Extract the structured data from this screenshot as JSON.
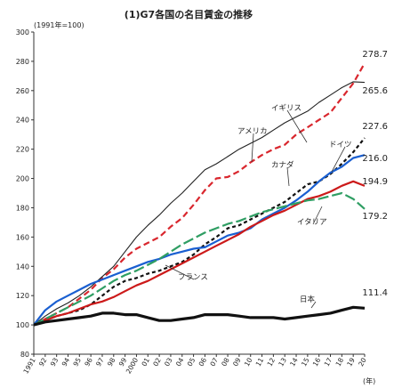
{
  "chart_data": {
    "type": "line",
    "title": "(1)G7各国の名目賃金の推移",
    "ylabel": "(1991年=100)",
    "xlabel": "(年)",
    "ylim": [
      80,
      300
    ],
    "yticks": [
      80,
      100,
      120,
      140,
      160,
      180,
      200,
      220,
      240,
      260,
      280,
      300
    ],
    "grid": false,
    "legend": "inline labels",
    "categories": [
      "1991",
      "92",
      "93",
      "94",
      "95",
      "96",
      "97",
      "98",
      "99",
      "2000",
      "01",
      "02",
      "03",
      "04",
      "05",
      "06",
      "07",
      "08",
      "09",
      "10",
      "11",
      "12",
      "13",
      "14",
      "15",
      "16",
      "17",
      "18",
      "19",
      "20"
    ],
    "series": [
      {
        "name": "アメリカ",
        "color": "#d9272e",
        "dash": "7,4",
        "width": 2.2,
        "label_end": "278.7",
        "values": [
          100,
          104,
          108,
          112,
          118,
          124,
          132,
          138,
          146,
          152,
          156,
          160,
          167,
          173,
          182,
          192,
          200,
          201,
          205,
          211,
          216,
          220,
          223,
          230,
          235,
          240,
          245,
          255,
          265,
          278.7
        ]
      },
      {
        "name": "イギリス",
        "color": "#222222",
        "dash": "",
        "width": 1.1,
        "label_end": "265.6",
        "values": [
          100,
          106,
          111,
          115,
          120,
          126,
          133,
          140,
          150,
          160,
          168,
          175,
          183,
          190,
          198,
          206,
          210,
          215,
          220,
          224,
          228,
          233,
          238,
          242,
          246,
          252,
          257,
          262,
          266,
          265.6
        ]
      },
      {
        "name": "カナダ",
        "color": "#111111",
        "dash": "4,3",
        "width": 2.2,
        "label_end": "227.6",
        "values": [
          100,
          103,
          106,
          108,
          110,
          114,
          120,
          126,
          130,
          132,
          135,
          137,
          140,
          143,
          148,
          155,
          160,
          166,
          168,
          172,
          176,
          180,
          184,
          190,
          196,
          198,
          203,
          210,
          218,
          227.6
        ]
      },
      {
        "name": "ドイツ",
        "color": "#1a5fd1",
        "dash": "",
        "width": 2.2,
        "label_end": "216.0",
        "values": [
          100,
          110,
          116,
          120,
          124,
          128,
          131,
          134,
          137,
          140,
          143,
          145,
          148,
          150,
          152,
          153,
          157,
          161,
          163,
          166,
          172,
          176,
          180,
          185,
          191,
          198,
          204,
          208,
          214,
          216.0
        ]
      },
      {
        "name": "フランス",
        "color": "#cc1a1a",
        "dash": "",
        "width": 2.2,
        "label_end": "194.9",
        "values": [
          100,
          103,
          106,
          108,
          111,
          114,
          116,
          119,
          123,
          127,
          130,
          134,
          138,
          142,
          146,
          150,
          154,
          158,
          162,
          167,
          171,
          175,
          178,
          182,
          186,
          188,
          191,
          195,
          198,
          194.9
        ]
      },
      {
        "name": "イタリア",
        "color": "#2f9e63",
        "dash": "12,4",
        "width": 2.2,
        "label_end": "179.2",
        "values": [
          100,
          104,
          108,
          112,
          116,
          120,
          125,
          130,
          134,
          137,
          141,
          145,
          150,
          155,
          159,
          163,
          166,
          169,
          171,
          174,
          177,
          179,
          181,
          183,
          185,
          186,
          188,
          190,
          186,
          179.2
        ]
      },
      {
        "name": "日本",
        "color": "#111111",
        "dash": "",
        "width": 3.2,
        "label_end": "111.4",
        "values": [
          100,
          102,
          103,
          104,
          105,
          106,
          108,
          108,
          107,
          107,
          105,
          103,
          103,
          104,
          105,
          107,
          107,
          107,
          106,
          105,
          105,
          105,
          104,
          105,
          106,
          107,
          108,
          110,
          112,
          111.4
        ]
      }
    ]
  }
}
